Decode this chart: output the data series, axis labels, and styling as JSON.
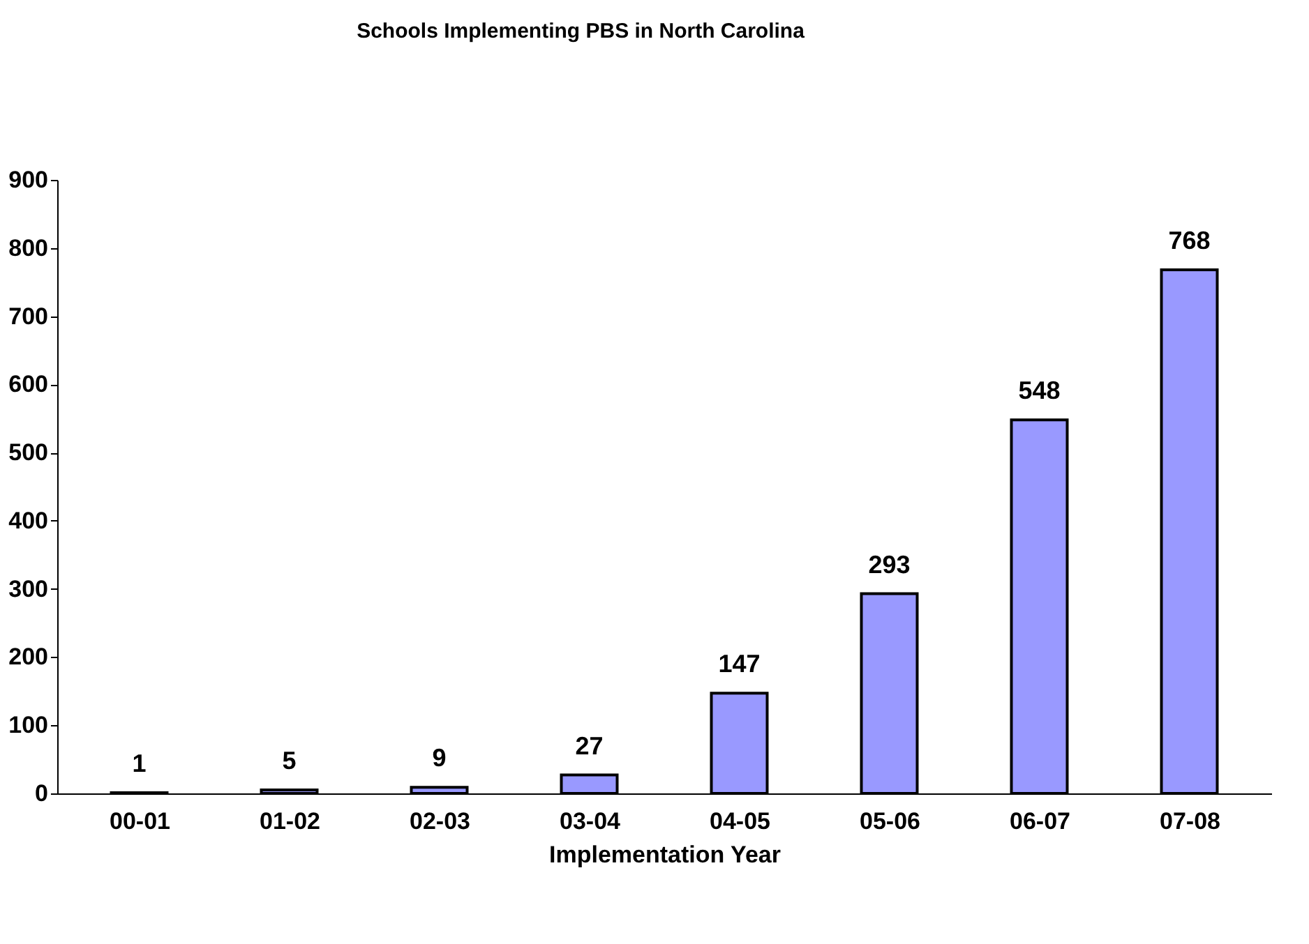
{
  "chart_data": {
    "type": "bar",
    "title": "Schools Implementing PBS in North Carolina",
    "xlabel": "Implementation Year",
    "categories": [
      "00-01",
      "01-02",
      "02-03",
      "03-04",
      "04-05",
      "05-06",
      "06-07",
      "07-08"
    ],
    "values": [
      1,
      5,
      9,
      27,
      147,
      293,
      548,
      768
    ],
    "color": "#9999ff",
    "ylim": [
      0,
      900
    ],
    "yticks": [
      0,
      100,
      200,
      300,
      400,
      500,
      600,
      700,
      800,
      900
    ],
    "grid": false,
    "data_labels": true
  }
}
